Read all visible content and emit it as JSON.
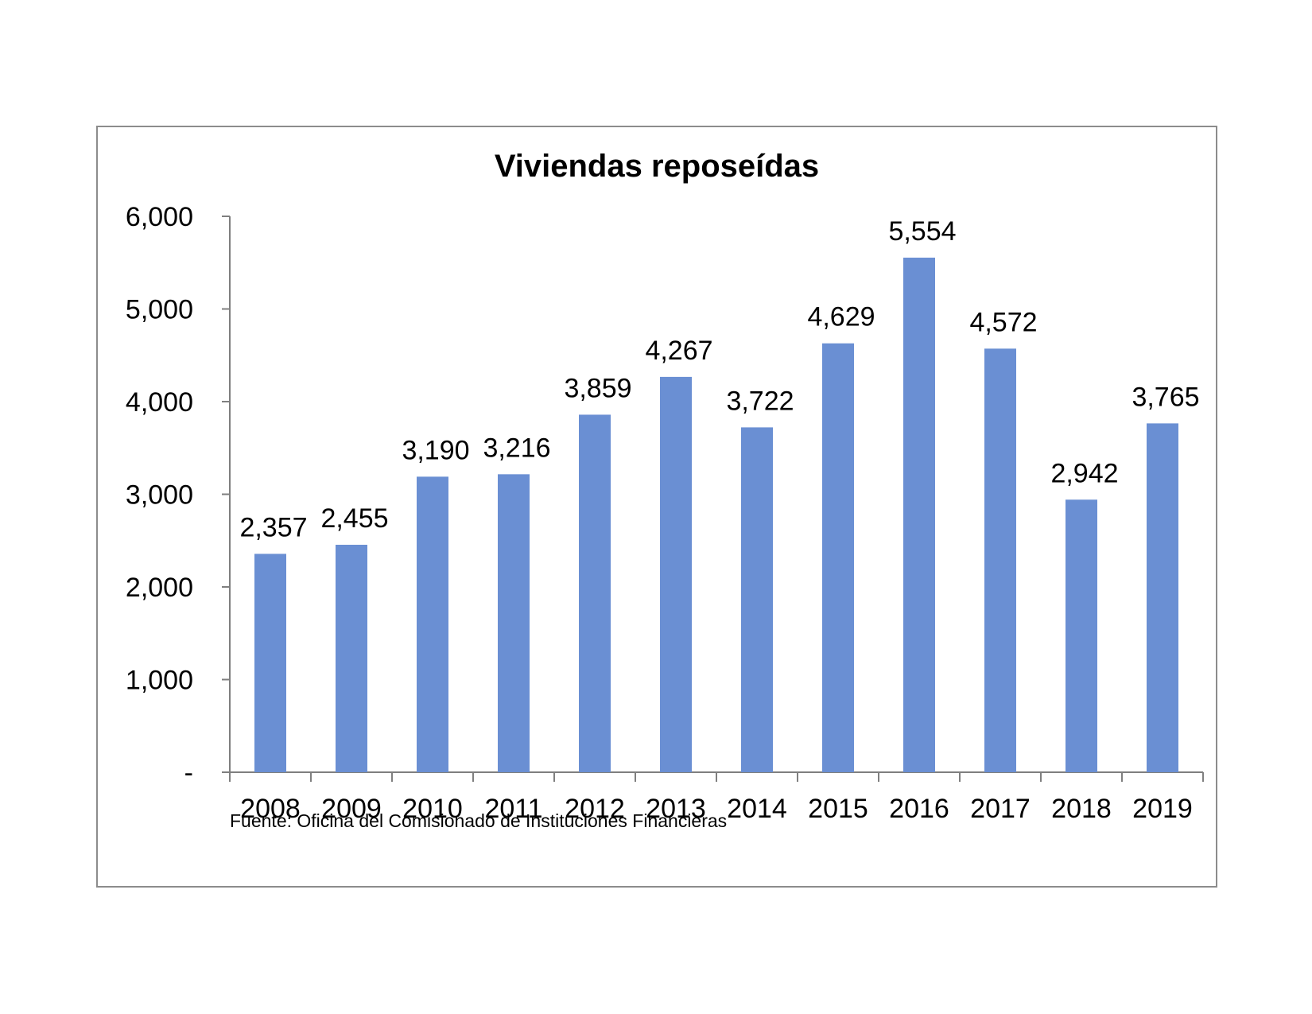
{
  "chart_data": {
    "type": "bar",
    "title": "Viviendas reposeídas",
    "categories": [
      "2008",
      "2009",
      "2010",
      "2011",
      "2012",
      "2013",
      "2014",
      "2015",
      "2016",
      "2017",
      "2018",
      "2019"
    ],
    "values": [
      2357,
      2455,
      3190,
      3216,
      3859,
      4267,
      3722,
      4629,
      5554,
      4572,
      2942,
      3765
    ],
    "value_labels": [
      "2,357",
      "2,455",
      "3,190",
      "3,216",
      "3,859",
      "4,267",
      "3,722",
      "4,629",
      "5,554",
      "4,572",
      "2,942",
      "3,765"
    ],
    "ylim": [
      0,
      6000
    ],
    "yticks": [
      0,
      1000,
      2000,
      3000,
      4000,
      5000,
      6000
    ],
    "ytick_labels": [
      "-",
      "1,000",
      "2,000",
      "3,000",
      "4,000",
      "5,000",
      "6,000"
    ],
    "xlabel": "",
    "ylabel": "",
    "grid": false,
    "legend": "none",
    "bar_color": "#6a8fd3",
    "source": "Fuente: Oficina  del Comisionado  de Instituciones  Financieras"
  }
}
